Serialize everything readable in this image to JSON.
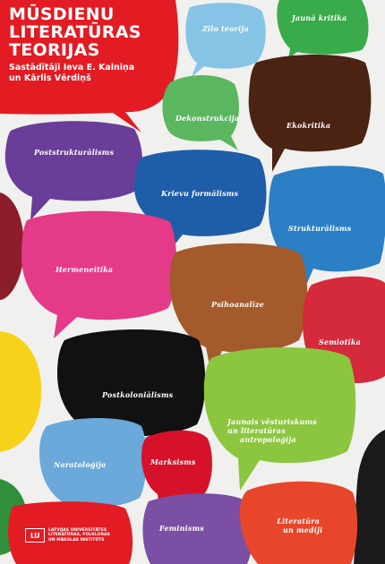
{
  "cover": {
    "title_line1": "MŪSDIENU",
    "title_line2": "LITERATŪRAS",
    "title_line3": "TEORIJAS",
    "editors_line1": "Sastādītāji Ieva E. Kalniņa",
    "editors_line2": "un Kārlis Vērdiņš"
  },
  "bubbles": {
    "zilo_teorija": "Zilo teorija",
    "jauna_kritika": "Jaunā kritika",
    "dekonstrukcija": "Dekonstrukcija",
    "ekokritika": "Ekokritika",
    "poststrukturalisms": "Poststrukturālisms",
    "krievu_formalisms": "Krievu formālisms",
    "strukturalisms": "Strukturālisms",
    "hermeneitika": "Hermeneitika",
    "psihoanalize": "Psihoanalīze",
    "semiotika": "Semiotika",
    "postkolonialisms": "Postkoloniālisms",
    "jaunais_line1": "Jaunais vēsturiskums",
    "jaunais_line2": "un literatūras",
    "jaunais_line3": "antropoloģija",
    "naratologija": "Naratoloģija",
    "marksisms": "Marksisms",
    "feminisms": "Feminisms",
    "literatura_line1": "Literatūra",
    "literatura_line2": "un mediji"
  },
  "publisher": {
    "mark": "LU",
    "line1": "LATVIJAS UNIVERSITĀTES",
    "line2": "LITERATŪRAS, FOLKLORAS",
    "line3": "UN MĀKSLAS INSTITŪTS"
  },
  "colors": {
    "background": "#f0f0ee",
    "title_red": "#e31b23",
    "sky_blue": "#86c4e6",
    "green": "#3aab4a",
    "light_green": "#5ab760",
    "dark_brown": "#4a2312",
    "purple": "#6a3d98",
    "blue": "#1e5da8",
    "mid_blue": "#2b7fc4",
    "pink": "#e43a88",
    "tan_brown": "#a45a2a",
    "red": "#d42a3c",
    "black": "#111111",
    "lime": "#8cc63f",
    "pale_blue": "#6aa9d9",
    "crimson": "#d6122a",
    "violet": "#7b4fa4",
    "orange_red": "#e8462a",
    "yellow": "#f6d31a",
    "maroon": "#8c1d2b",
    "forest": "#2f8f3a"
  }
}
